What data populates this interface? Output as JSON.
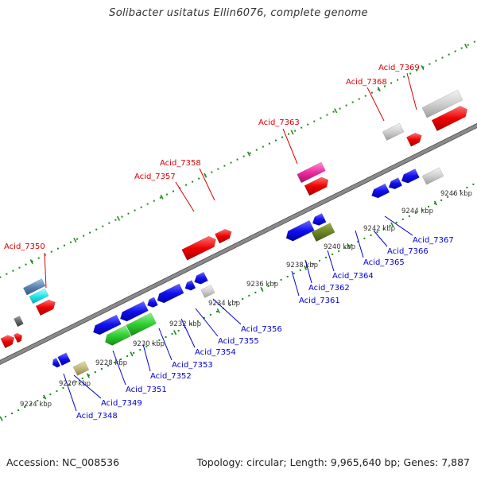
{
  "title": "Solibacter usitatus Ellin6076, complete genome",
  "footer": {
    "accession": "Accession: NC_008536",
    "summary": "Topology: circular; Length: 9,965,640 bp; Genes: 7,887"
  },
  "colors": {
    "upper_labels": "#dd0000",
    "lower_labels": "#0000cc",
    "tick_marks": "#1a8a1a",
    "backbone": "#8a8a8a",
    "kbp_label": "#333333"
  },
  "axis_ticks": [
    {
      "label": "9224 kbp"
    },
    {
      "label": "9226 kbp"
    },
    {
      "label": "9228 kbp"
    },
    {
      "label": "9230 kbp"
    },
    {
      "label": "9232 kbp"
    },
    {
      "label": "9234 kbp"
    },
    {
      "label": "9236 kbp"
    },
    {
      "label": "9238 kbp"
    },
    {
      "label": "9240 kbp"
    },
    {
      "label": "9242 kbp"
    },
    {
      "label": "9244 kbp"
    },
    {
      "label": "9246 kbp"
    }
  ],
  "upper_labels": [
    {
      "text": "Acid_7350"
    },
    {
      "text": "Acid_7357"
    },
    {
      "text": "Acid_7358"
    },
    {
      "text": "Acid_7363"
    },
    {
      "text": "Acid_7368"
    },
    {
      "text": "Acid_7369"
    }
  ],
  "lower_labels": [
    {
      "text": "Acid_7348"
    },
    {
      "text": "Acid_7349"
    },
    {
      "text": "Acid_7351"
    },
    {
      "text": "Acid_7352"
    },
    {
      "text": "Acid_7353"
    },
    {
      "text": "Acid_7354"
    },
    {
      "text": "Acid_7355"
    },
    {
      "text": "Acid_7356"
    },
    {
      "text": "Acid_7361"
    },
    {
      "text": "Acid_7362"
    },
    {
      "text": "Acid_7364"
    },
    {
      "text": "Acid_7365"
    },
    {
      "text": "Acid_7366"
    },
    {
      "text": "Acid_7367"
    }
  ]
}
